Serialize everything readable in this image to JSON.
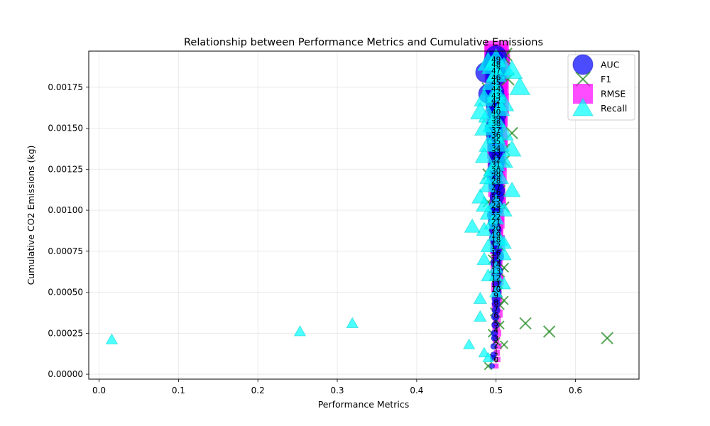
{
  "chart_data": {
    "type": "scatter",
    "title": "Relationship between Performance Metrics and Cumulative Emissions",
    "xlabel": "Performance Metrics",
    "ylabel": "Cumulative CO2 Emissions (kg)",
    "xlim": [
      -0.013,
      0.68
    ],
    "ylim": [
      -3e-05,
      0.00197
    ],
    "xticks": [
      0.0,
      0.1,
      0.2,
      0.3,
      0.4,
      0.5,
      0.6
    ],
    "xtick_labels": [
      "0.0",
      "0.1",
      "0.2",
      "0.3",
      "0.4",
      "0.5",
      "0.6"
    ],
    "yticks": [
      0.0,
      0.00025,
      0.0005,
      0.00075,
      0.001,
      0.00125,
      0.0015,
      0.00175
    ],
    "ytick_labels": [
      "0.00000",
      "0.00025",
      "0.00050",
      "0.00075",
      "0.00100",
      "0.00125",
      "0.00150",
      "0.00175"
    ],
    "grid": true,
    "legend_position": "top-right",
    "colors": {
      "AUC": "#0000ff",
      "F1": "#228b22",
      "RMSE": "#ff00ff",
      "Recall": "#00ffff"
    },
    "series": [
      {
        "name": "AUC",
        "marker": "circle",
        "x": [
          0.495,
          0.496,
          0.497,
          0.497,
          0.498,
          0.498,
          0.499,
          0.499,
          0.5,
          0.5,
          0.5,
          0.501,
          0.501,
          0.5,
          0.502,
          0.5,
          0.503,
          0.5,
          0.501,
          0.499,
          0.499,
          0.498,
          0.497,
          0.5,
          0.5,
          0.501,
          0.502,
          0.5,
          0.498,
          0.499,
          0.5,
          0.501,
          0.501,
          0.5,
          0.499,
          0.498,
          0.497,
          0.5,
          0.501,
          0.5,
          0.499,
          0.5,
          0.498,
          0.49,
          0.487,
          0.5,
          0.499,
          0.497,
          0.498,
          0.5
        ],
        "y": [
          5e-05,
          0.0001,
          0.00012,
          0.00017,
          0.00022,
          0.00025,
          0.0003,
          0.00035,
          0.00039,
          0.00043,
          0.00046,
          0.0005,
          0.00055,
          0.0006,
          0.00063,
          0.00068,
          0.00072,
          0.00076,
          0.0008,
          0.00083,
          0.00088,
          0.00093,
          0.00097,
          0.001,
          0.00103,
          0.00108,
          0.00112,
          0.00115,
          0.0012,
          0.00123,
          0.00127,
          0.0013,
          0.00135,
          0.00138,
          0.00143,
          0.00147,
          0.0015,
          0.00153,
          0.00158,
          0.00162,
          0.00165,
          0.00168,
          0.00172,
          0.00171,
          0.00184,
          0.00182,
          0.00186,
          0.00189,
          0.00191,
          0.00194
        ]
      },
      {
        "name": "F1",
        "marker": "x",
        "x": [
          0.49,
          0.497,
          0.51,
          0.5,
          0.495,
          0.505,
          0.5,
          0.498,
          0.505,
          0.51,
          0.502,
          0.503,
          0.499,
          0.505,
          0.51,
          0.496,
          0.5,
          0.505,
          0.5,
          0.5,
          0.497,
          0.5,
          0.51,
          0.49,
          0.5,
          0.505,
          0.5,
          0.5,
          0.49,
          0.5,
          0.51,
          0.5,
          0.51,
          0.5,
          0.498,
          0.505,
          0.52,
          0.5,
          0.5,
          0.505,
          0.5,
          0.5,
          0.49,
          0.5,
          0.515,
          0.5,
          0.505,
          0.5,
          0.51,
          0.512,
          0.537,
          0.567,
          0.64
        ],
        "y": [
          5e-05,
          0.0001,
          0.00018,
          0.0002,
          0.00025,
          0.0003,
          0.00033,
          0.00038,
          0.00042,
          0.00045,
          0.0005,
          0.00055,
          0.0006,
          0.00062,
          0.00065,
          0.0007,
          0.00075,
          0.00078,
          0.00082,
          0.00087,
          0.0009,
          0.00095,
          0.00102,
          0.00105,
          0.00108,
          0.00112,
          0.00116,
          0.0012,
          0.00122,
          0.00126,
          0.0013,
          0.00133,
          0.00137,
          0.0014,
          0.00143,
          0.00146,
          0.00147,
          0.0015,
          0.00155,
          0.0016,
          0.00165,
          0.0017,
          0.00174,
          0.00176,
          0.0018,
          0.00184,
          0.00188,
          0.0019,
          0.00193,
          0.00195,
          0.00031,
          0.00026,
          0.00022
        ]
      },
      {
        "name": "RMSE",
        "marker": "square",
        "x": [
          0.5,
          0.502,
          0.501,
          0.503,
          0.5,
          0.502,
          0.5,
          0.501,
          0.503,
          0.5,
          0.502,
          0.501,
          0.5,
          0.503,
          0.502,
          0.5,
          0.501,
          0.502,
          0.5,
          0.503,
          0.501,
          0.5,
          0.502,
          0.501,
          0.5,
          0.503,
          0.502,
          0.5,
          0.501,
          0.503,
          0.5,
          0.502,
          0.501,
          0.5,
          0.503,
          0.502,
          0.5,
          0.501,
          0.502,
          0.5,
          0.503,
          0.501,
          0.5,
          0.502,
          0.501,
          0.5,
          0.503,
          0.502,
          0.5,
          0.501
        ],
        "y": [
          5e-05,
          9e-05,
          0.00013,
          0.00017,
          0.00021,
          0.00025,
          0.00029,
          0.00033,
          0.00037,
          0.00041,
          0.00045,
          0.00049,
          0.00053,
          0.00057,
          0.00061,
          0.00065,
          0.00069,
          0.00073,
          0.00077,
          0.00081,
          0.00085,
          0.00089,
          0.00093,
          0.00097,
          0.00101,
          0.00105,
          0.00109,
          0.00113,
          0.00117,
          0.00121,
          0.00125,
          0.00129,
          0.00133,
          0.00137,
          0.00141,
          0.00145,
          0.00149,
          0.00153,
          0.00157,
          0.00161,
          0.00165,
          0.00169,
          0.00173,
          0.00177,
          0.00181,
          0.00185,
          0.00188,
          0.00191,
          0.00194,
          0.00196
        ]
      },
      {
        "name": "Recall",
        "marker": "triangle",
        "x": [
          0.016,
          0.253,
          0.319,
          0.466,
          0.48,
          0.485,
          0.49,
          0.48,
          0.5,
          0.51,
          0.49,
          0.5,
          0.485,
          0.51,
          0.49,
          0.505,
          0.5,
          0.485,
          0.495,
          0.5,
          0.49,
          0.51,
          0.485,
          0.5,
          0.48,
          0.47,
          0.49,
          0.505,
          0.52,
          0.495,
          0.5,
          0.51,
          0.485,
          0.52,
          0.49,
          0.5,
          0.51,
          0.495,
          0.5,
          0.49,
          0.505,
          0.51,
          0.485,
          0.5,
          0.53,
          0.495,
          0.48,
          0.5,
          0.51,
          0.49,
          0.5,
          0.52,
          0.495,
          0.5,
          0.485,
          0.505,
          0.49,
          0.51,
          0.5
        ],
        "y": [
          0.00021,
          0.00026,
          0.00031,
          0.00018,
          0.00035,
          0.00013,
          0.0001,
          0.00046,
          0.0005,
          0.00055,
          0.0006,
          0.00065,
          0.0007,
          0.00073,
          0.00078,
          0.00082,
          0.00085,
          0.00088,
          0.00092,
          0.00095,
          0.00098,
          0.001,
          0.00103,
          0.00105,
          0.00108,
          0.0009,
          0.00115,
          0.0012,
          0.00112,
          0.00125,
          0.00128,
          0.0013,
          0.00133,
          0.00137,
          0.0014,
          0.00145,
          0.00147,
          0.00152,
          0.00155,
          0.00158,
          0.00162,
          0.00165,
          0.00168,
          0.00172,
          0.00175,
          0.00178,
          0.0016,
          0.00183,
          0.00187,
          0.0019,
          0.00192,
          0.00185,
          0.00188,
          0.0017,
          0.0015,
          0.0014,
          0.0012,
          0.0008,
          0.0006
        ]
      }
    ],
    "point_labels": {
      "x": 0.5,
      "labels": [
        "0",
        "1",
        "2",
        "3",
        "4",
        "5",
        "6",
        "7",
        "8",
        "9",
        "10",
        "11",
        "12",
        "13",
        "14",
        "15",
        "16",
        "17",
        "18",
        "19",
        "20",
        "21",
        "22",
        "23",
        "24",
        "25",
        "26",
        "27",
        "28",
        "29",
        "30",
        "31",
        "32",
        "33",
        "34",
        "35",
        "36",
        "37",
        "38",
        "39",
        "40",
        "41",
        "42",
        "43",
        "44",
        "45",
        "46",
        "47",
        "48",
        "49"
      ],
      "y": [
        9e-05,
        0.00014,
        0.00018,
        0.00022,
        0.00027,
        0.00031,
        0.00036,
        0.0004,
        0.00044,
        0.00048,
        0.00052,
        0.00055,
        0.00059,
        0.00063,
        0.00067,
        0.0007,
        0.00074,
        0.00078,
        0.00082,
        0.00085,
        0.00089,
        0.00093,
        0.00096,
        0.001,
        0.00103,
        0.00107,
        0.00111,
        0.00114,
        0.00118,
        0.00121,
        0.00124,
        0.00128,
        0.00131,
        0.00135,
        0.00138,
        0.00142,
        0.00146,
        0.00149,
        0.00153,
        0.00156,
        0.0016,
        0.00164,
        0.00167,
        0.0017,
        0.00174,
        0.00178,
        0.00181,
        0.00185,
        0.00189,
        0.00192
      ]
    }
  }
}
